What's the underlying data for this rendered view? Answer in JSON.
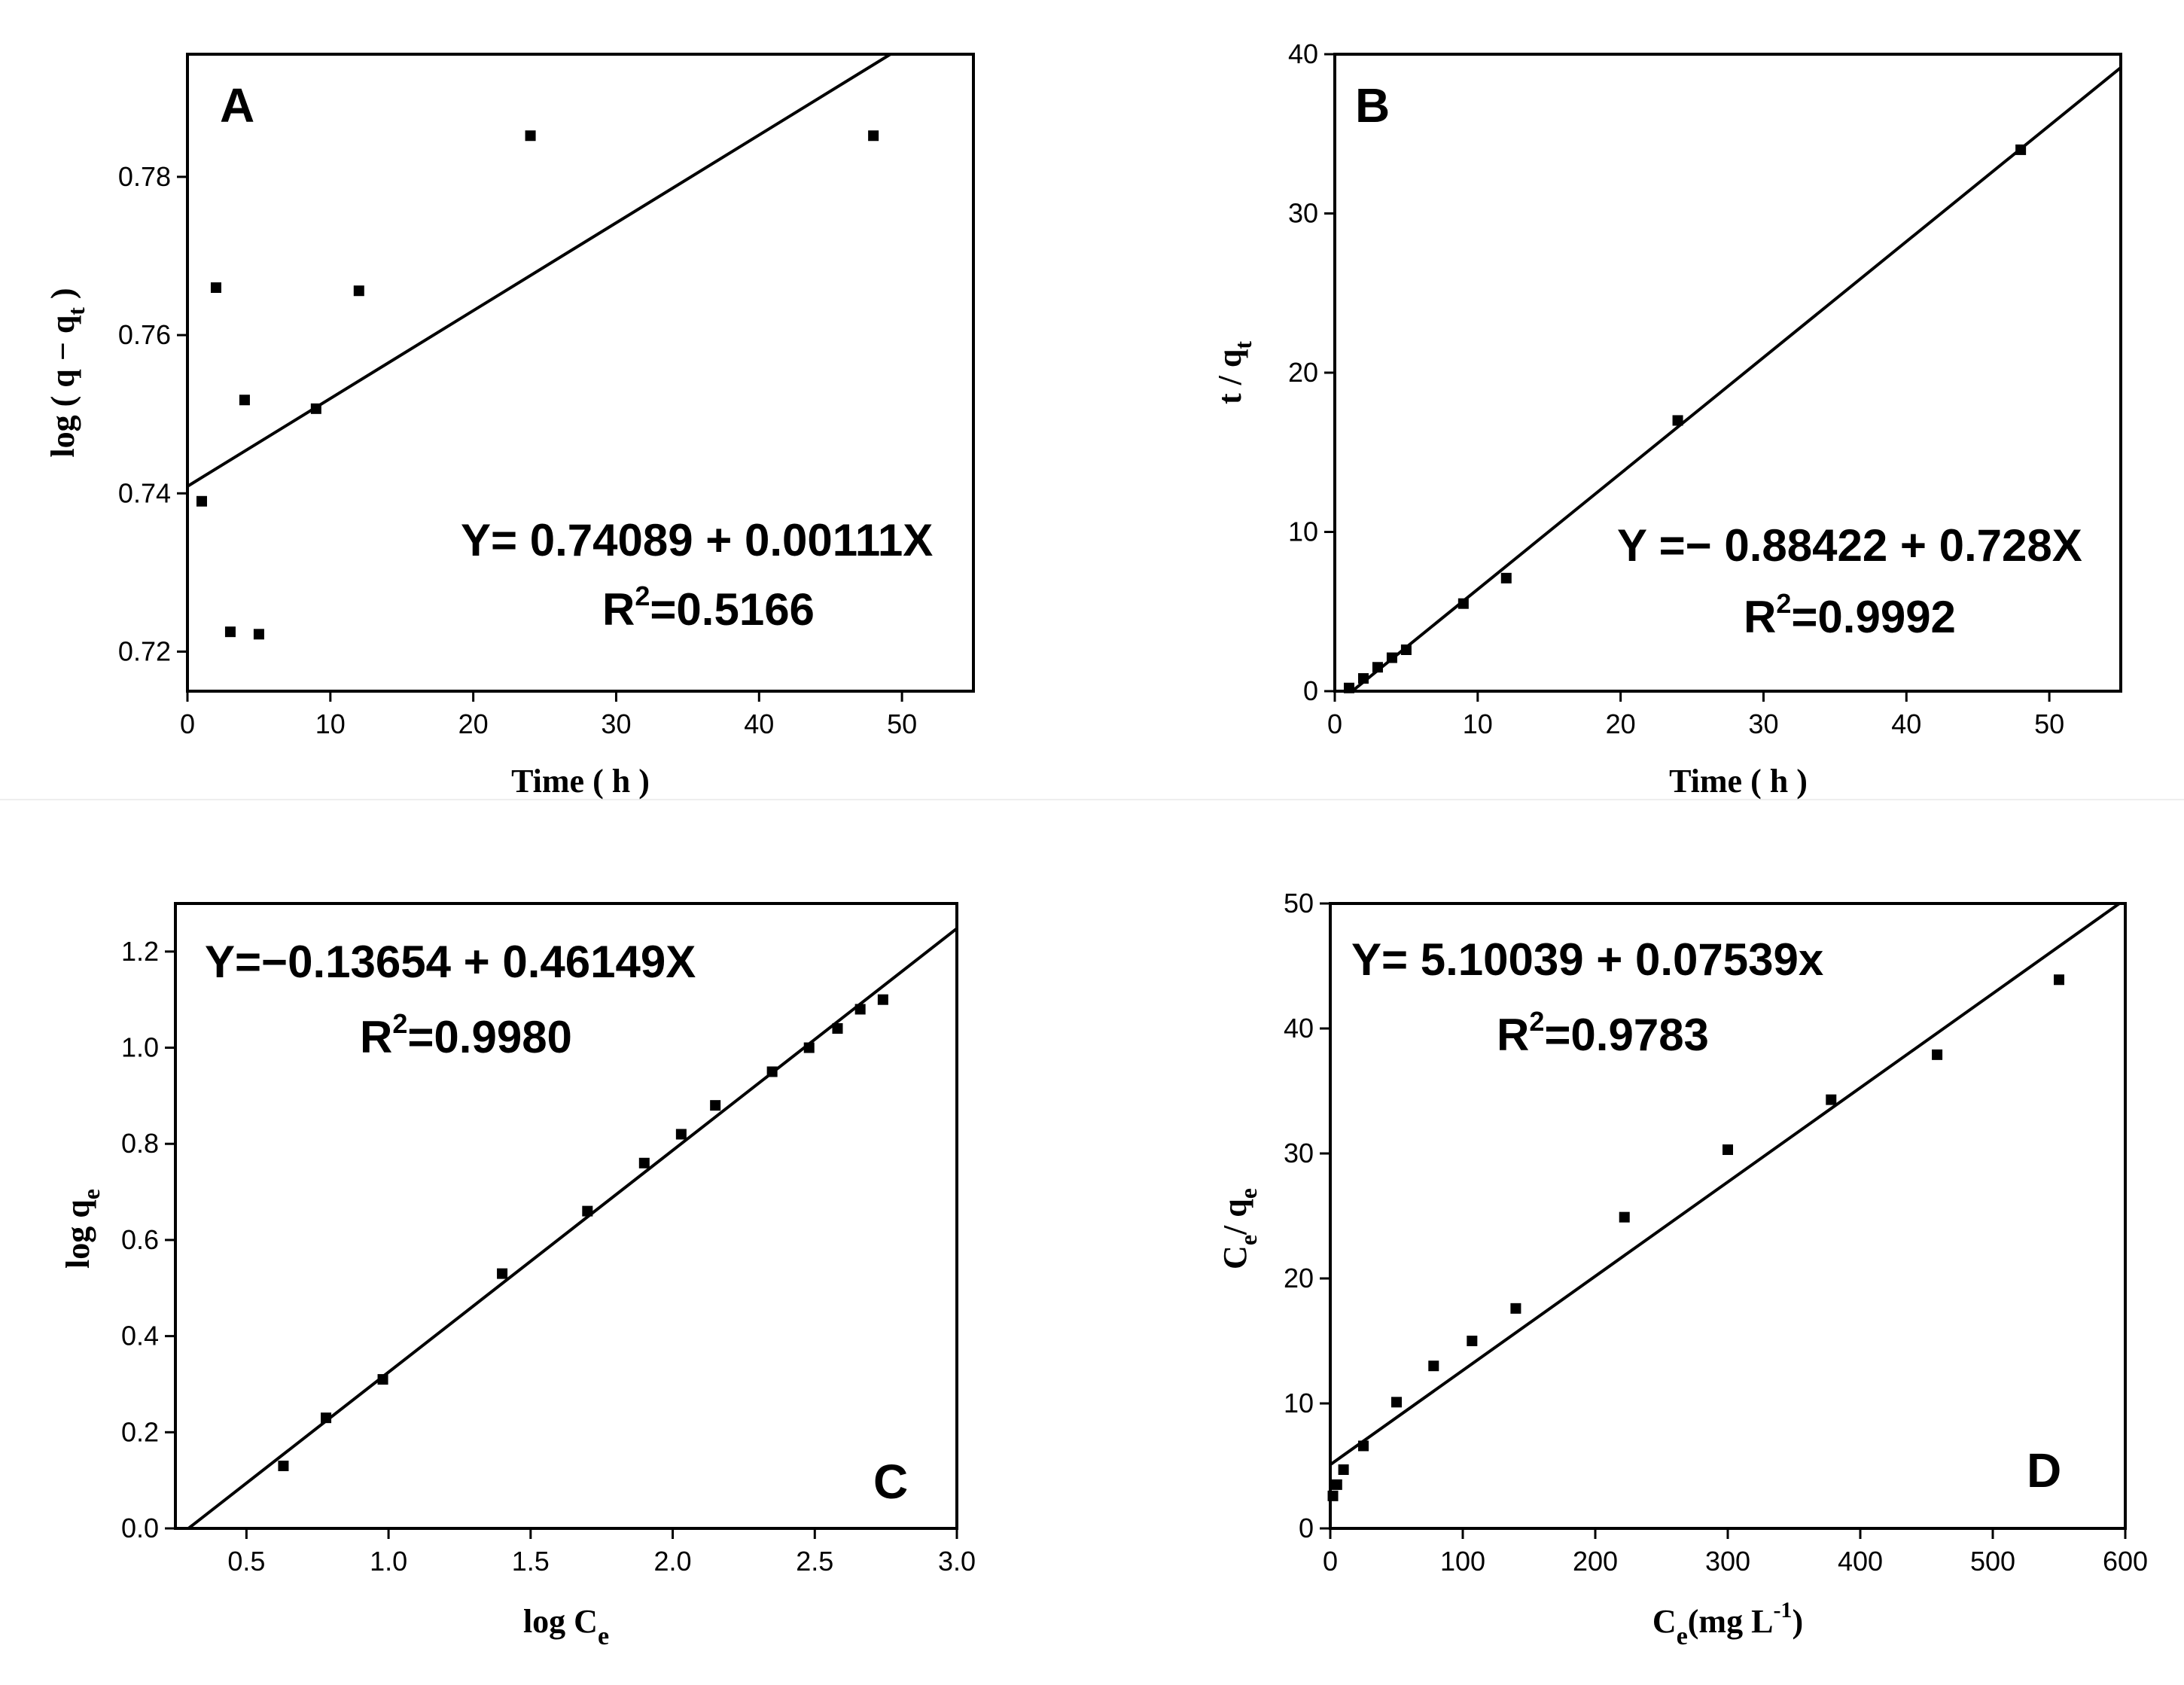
{
  "chart_data": [
    {
      "panel": "A",
      "type": "scatter",
      "xlabel": "Time ( h )",
      "ylabel": "log ( q − q_t )",
      "xlim": [
        0,
        55
      ],
      "ylim": [
        0.715,
        0.7955
      ],
      "xticks": [
        0,
        10,
        20,
        30,
        40,
        50
      ],
      "yticks": [
        0.72,
        0.74,
        0.76,
        0.78
      ],
      "ytick_decimals": 2,
      "x": [
        1,
        2,
        3,
        4,
        5,
        9,
        12,
        24,
        48
      ],
      "y": [
        0.739,
        0.766,
        0.7225,
        0.7518,
        0.7222,
        0.7507,
        0.7656,
        0.7852,
        0.7852
      ],
      "fit": {
        "intercept": 0.74089,
        "slope": 0.00111
      },
      "equation": "Y= 0.74089 + 0.00111X",
      "r2_prefix": "R",
      "r2_sup": "2",
      "r2_value": "=0.5166",
      "legend_position": "bottom-right"
    },
    {
      "panel": "B",
      "type": "scatter",
      "xlabel": "Time ( h )",
      "ylabel": "t / q_t",
      "xlim": [
        0,
        55
      ],
      "ylim": [
        0,
        40
      ],
      "xticks": [
        0,
        10,
        20,
        30,
        40,
        50
      ],
      "yticks": [
        0,
        10,
        20,
        30,
        40
      ],
      "ytick_decimals": 0,
      "x": [
        1,
        2,
        3,
        4,
        5,
        9,
        12,
        24,
        48
      ],
      "y": [
        0.2,
        0.8,
        1.5,
        2.1,
        2.6,
        5.5,
        7.1,
        17.0,
        34.0
      ],
      "fit": {
        "intercept": -0.88422,
        "slope": 0.728
      },
      "equation": "Y =− 0.88422 + 0.728X",
      "r2_prefix": "R",
      "r2_sup": "2",
      "r2_value": "=0.9992",
      "legend_position": "bottom-right"
    },
    {
      "panel": "C",
      "type": "scatter",
      "xlabel": "log C_e",
      "ylabel": "log q_e",
      "xlim": [
        0.25,
        3.0
      ],
      "ylim": [
        0,
        1.3
      ],
      "xticks": [
        0.5,
        1.0,
        1.5,
        2.0,
        2.5,
        3.0
      ],
      "yticks": [
        0.0,
        0.2,
        0.4,
        0.6,
        0.8,
        1.0,
        1.2
      ],
      "xtick_decimals": 1,
      "ytick_decimals": 1,
      "x": [
        0.63,
        0.78,
        0.98,
        1.4,
        1.7,
        1.9,
        2.03,
        2.15,
        2.35,
        2.48,
        2.58,
        2.66,
        2.74
      ],
      "y": [
        0.13,
        0.23,
        0.31,
        0.53,
        0.66,
        0.76,
        0.82,
        0.88,
        0.95,
        1.0,
        1.04,
        1.08,
        1.1
      ],
      "fit": {
        "intercept": -0.13654,
        "slope": 0.46149
      },
      "equation": "Y=−0.13654 + 0.46149X",
      "r2_prefix": "R",
      "r2_sup": "2",
      "r2_value": "=0.9980",
      "legend_position": "top-left"
    },
    {
      "panel": "D",
      "type": "scatter",
      "xlabel": "C_e(mg L^-1)",
      "ylabel": "C_e/q_e",
      "xlim": [
        0,
        600
      ],
      "ylim": [
        0,
        50
      ],
      "xticks": [
        0,
        100,
        200,
        300,
        400,
        500,
        600
      ],
      "yticks": [
        0,
        10,
        20,
        30,
        40,
        50
      ],
      "ytick_decimals": 0,
      "x": [
        2,
        5,
        10,
        25,
        50,
        78,
        107,
        140,
        222,
        300,
        378,
        458,
        550
      ],
      "y": [
        2.6,
        3.5,
        4.7,
        6.6,
        10.1,
        13.0,
        15.0,
        17.6,
        24.9,
        30.3,
        34.3,
        37.9,
        43.9
      ],
      "fit": {
        "intercept": 5.10039,
        "slope": 0.07539
      },
      "equation": "Y= 5.10039 + 0.07539x",
      "r2_prefix": "R",
      "r2_sup": "2",
      "r2_value": "=0.9783",
      "legend_position": "top-left"
    }
  ]
}
